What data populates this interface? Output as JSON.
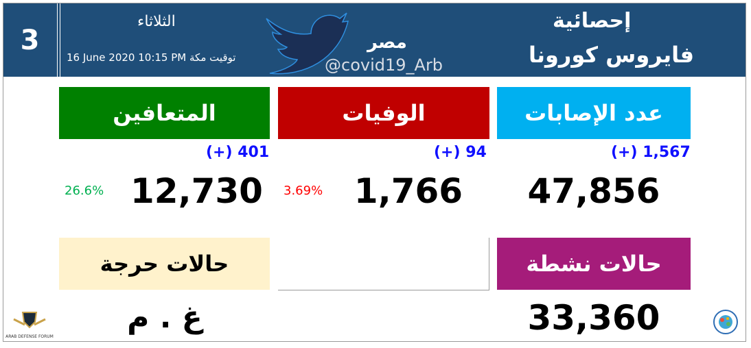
{
  "header": {
    "number": "3",
    "day": "الثلاثاء",
    "datetime": "16 June 2020 10:15 PM",
    "time_zone": "توقيت مكة",
    "country": "مصر",
    "handle": "@covid19_Arb",
    "title_line1": "إحصائية",
    "title_line2": "فايروس كورونا"
  },
  "cards": {
    "cases": {
      "label": "عدد الإصابات",
      "delta": "(+) 1,567",
      "value": "47,856",
      "color": "#00b0f0"
    },
    "deaths": {
      "label": "الوفيات",
      "delta": "(+) 94",
      "value": "1,766",
      "percent": "3.69%",
      "color": "#c00000"
    },
    "recovered": {
      "label": "المتعافين",
      "delta": "(+) 401",
      "value": "12,730",
      "percent": "26.6%",
      "color": "#008000"
    },
    "active": {
      "label": "حالات نشطة",
      "value": "33,360",
      "color": "#a51c7a"
    },
    "critical": {
      "label": "حالات حرجة",
      "value": "غ . م",
      "color": "#fff2cc"
    }
  },
  "logos": {
    "left": "ARAB DEFENSE FORUM",
    "right": "covid-globe-logo"
  }
}
